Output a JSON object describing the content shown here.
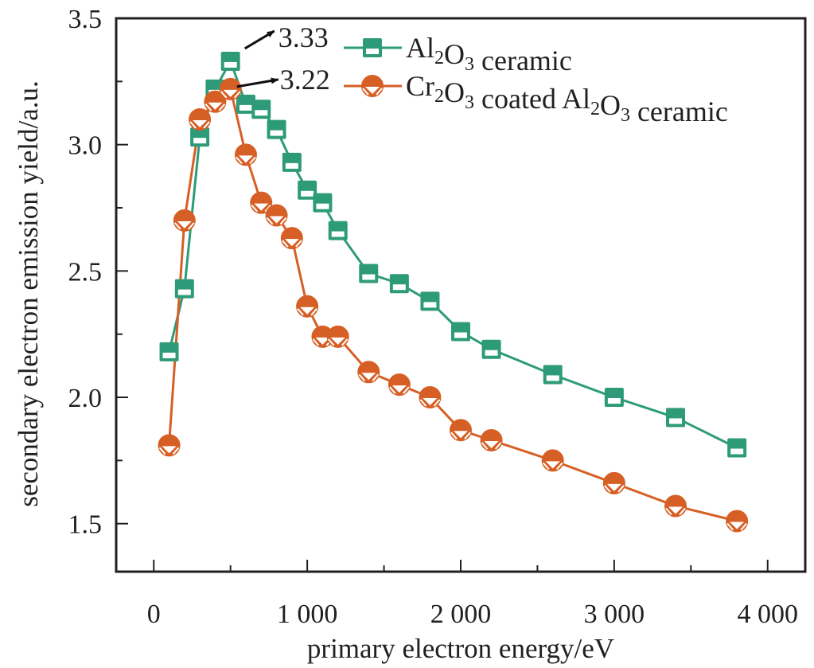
{
  "chart_data": {
    "type": "line",
    "title": "",
    "xlabel": "primary electron energy/eV",
    "ylabel": "secondary electron emission yield/a.u.",
    "xlim": [
      -245,
      4245
    ],
    "ylim": [
      1.31,
      3.5
    ],
    "x_ticks": [
      0,
      1000,
      2000,
      3000,
      4000
    ],
    "x_tick_labels": [
      "0",
      "1 000",
      "2 000",
      "3 000",
      "4 000"
    ],
    "x_minor_ticks": [
      500,
      1500,
      2500,
      3500
    ],
    "y_ticks": [
      1.5,
      2.0,
      2.5,
      3.0,
      3.5
    ],
    "y_tick_labels": [
      "1.5",
      "2.0",
      "2.5",
      "3.0",
      "3.5"
    ],
    "y_minor_ticks": [
      1.75,
      2.25,
      2.75,
      3.25
    ],
    "grid": false,
    "legend_position": "top-right",
    "series": [
      {
        "name": "Al2O3 ceramic",
        "legend_parts": [
          [
            "Al",
            ""
          ],
          [
            "2",
            "sub"
          ],
          [
            "O",
            ""
          ],
          [
            "3",
            "sub"
          ],
          [
            " ceramic",
            ""
          ]
        ],
        "color": "#2e9b78",
        "marker": "square-half-filled",
        "x": [
          100,
          200,
          300,
          400,
          500,
          600,
          700,
          800,
          900,
          1000,
          1100,
          1200,
          1400,
          1600,
          1800,
          2000,
          2200,
          2600,
          3000,
          3400,
          3800
        ],
        "y": [
          2.18,
          2.43,
          3.03,
          3.22,
          3.33,
          3.16,
          3.14,
          3.06,
          2.93,
          2.82,
          2.77,
          2.66,
          2.49,
          2.45,
          2.38,
          2.26,
          2.19,
          2.09,
          2.0,
          1.92,
          1.8
        ]
      },
      {
        "name": "Cr2O3 coated Al2O3 ceramic",
        "legend_parts": [
          [
            "Cr",
            ""
          ],
          [
            "2",
            "sub"
          ],
          [
            "O",
            ""
          ],
          [
            "3",
            "sub"
          ],
          [
            " coated Al",
            ""
          ],
          [
            "2",
            "sub"
          ],
          [
            "O",
            ""
          ],
          [
            "3",
            "sub"
          ],
          [
            " ceramic",
            ""
          ]
        ],
        "color": "#d65f25",
        "marker": "circle-half-filled",
        "x": [
          100,
          200,
          300,
          400,
          500,
          600,
          700,
          800,
          900,
          1000,
          1100,
          1200,
          1400,
          1600,
          1800,
          2000,
          2200,
          2600,
          3000,
          3400,
          3800
        ],
        "y": [
          1.81,
          2.7,
          3.1,
          3.17,
          3.22,
          2.96,
          2.77,
          2.72,
          2.63,
          2.36,
          2.24,
          2.24,
          2.1,
          2.05,
          2.0,
          1.87,
          1.83,
          1.75,
          1.66,
          1.57,
          1.51
        ]
      }
    ],
    "annotations": [
      {
        "text": "3.33",
        "series": 0,
        "x": 500,
        "y": 3.33
      },
      {
        "text": "3.22",
        "series": 1,
        "x": 500,
        "y": 3.22
      }
    ]
  }
}
